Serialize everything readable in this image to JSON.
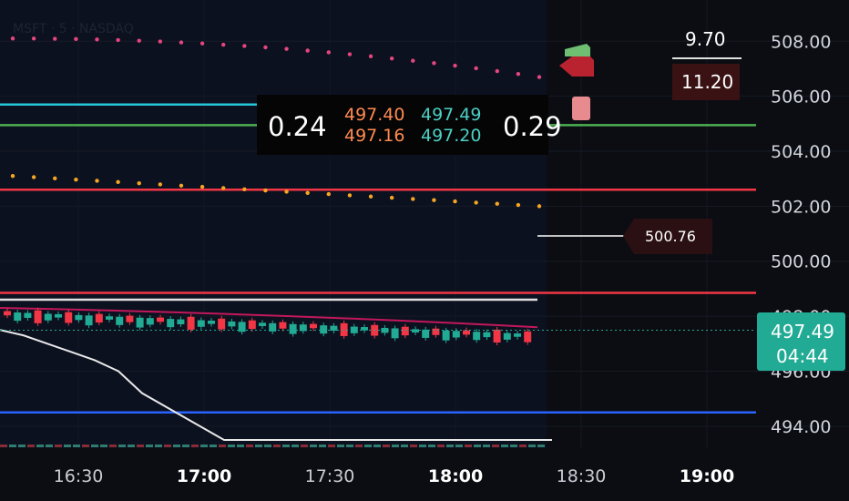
{
  "header": {
    "symbol_text": "MSFT · 5 · NASDAQ"
  },
  "colors": {
    "background": "#0b0d12",
    "plot_background": "#0c1120",
    "up": "#22ab94",
    "down": "#f23645",
    "pink": "#e6457e",
    "orange": "#f5a623",
    "cyan": "#26c6da",
    "green": "#4caf50",
    "red": "#f23645",
    "blue": "#2962ff",
    "white": "#e0e0e0"
  },
  "chart_data": {
    "type": "candlestick",
    "x_ticks": [
      "16:30",
      "17:00",
      "17:30",
      "18:00",
      "18:30",
      "19:00"
    ],
    "bold_x_ticks": [
      "17:00",
      "18:00",
      "19:00"
    ],
    "y_ticks": [
      "508.00",
      "506.00",
      "504.00",
      "502.00",
      "500.00",
      "498.00",
      "496.00",
      "494.00"
    ],
    "y_range": [
      493.2,
      509.5
    ],
    "horizontal_levels": [
      {
        "name": "cyan-level",
        "value": 505.7,
        "color": "cyan"
      },
      {
        "name": "green-level",
        "value": 504.95,
        "color": "green"
      },
      {
        "name": "red-level-upper",
        "value": 502.6,
        "color": "red"
      },
      {
        "name": "white-level",
        "value": 498.6,
        "color": "white"
      },
      {
        "name": "red-level-lower",
        "value": 498.85,
        "color": "red"
      },
      {
        "name": "blue-level",
        "value": 494.5,
        "color": "blue"
      }
    ],
    "pink_dotted_line": {
      "start": 508.1,
      "end": 506.7
    },
    "orange_dotted_line": {
      "start": 503.1,
      "end": 502.0
    },
    "ma_line": {
      "start": 498.3,
      "end": 497.6
    },
    "white_curve": [
      497.5,
      497.3,
      497.0,
      496.7,
      496.4,
      496.0,
      495.2,
      493.5,
      493.5,
      493.5,
      493.5,
      493.5
    ],
    "candles_summary": {
      "open_range": [
        497.2,
        498.0
      ],
      "last": 497.49
    },
    "labels": {
      "price_label": "497.49",
      "countdown": "04:44",
      "price_500": "500.76",
      "value_top": "9.70",
      "value_box": "11.20"
    },
    "overlay": {
      "left_value": "0.24",
      "right_value": "0.29",
      "orange_top": "497.40",
      "orange_bottom": "497.16",
      "teal_top": "497.49",
      "teal_bottom": "497.20"
    }
  }
}
